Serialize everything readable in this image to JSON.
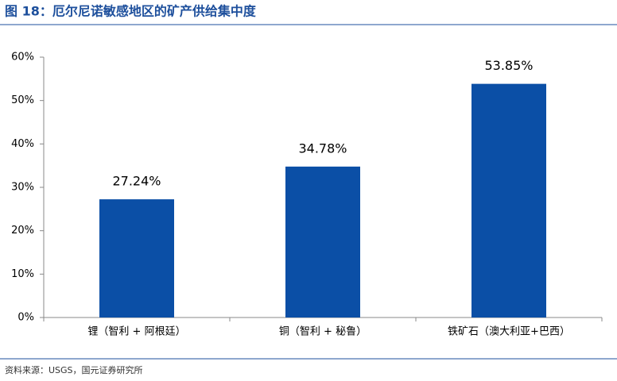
{
  "chart_data": {
    "type": "bar",
    "title": "图 18：厄尔尼诺敏感地区的矿产供给集中度",
    "categories": [
      "锂（智利 + 阿根廷）",
      "铜（智利 + 秘鲁）",
      "铁矿石（澳大利亚+巴西）"
    ],
    "values": [
      27.24,
      34.78,
      53.85
    ],
    "value_labels": [
      "27.24%",
      "34.78%",
      "53.85%"
    ],
    "color": "#0b4fa6",
    "ylim": [
      0,
      60
    ],
    "yticks": [
      {
        "value": 0,
        "label": "0%"
      },
      {
        "value": 10,
        "label": "10%"
      },
      {
        "value": 20,
        "label": "20%"
      },
      {
        "value": 30,
        "label": "30%"
      },
      {
        "value": 40,
        "label": "40%"
      },
      {
        "value": 50,
        "label": "50%"
      },
      {
        "value": 60,
        "label": "60%"
      }
    ],
    "source": "资料来源：USGS，国元证券研究所"
  }
}
